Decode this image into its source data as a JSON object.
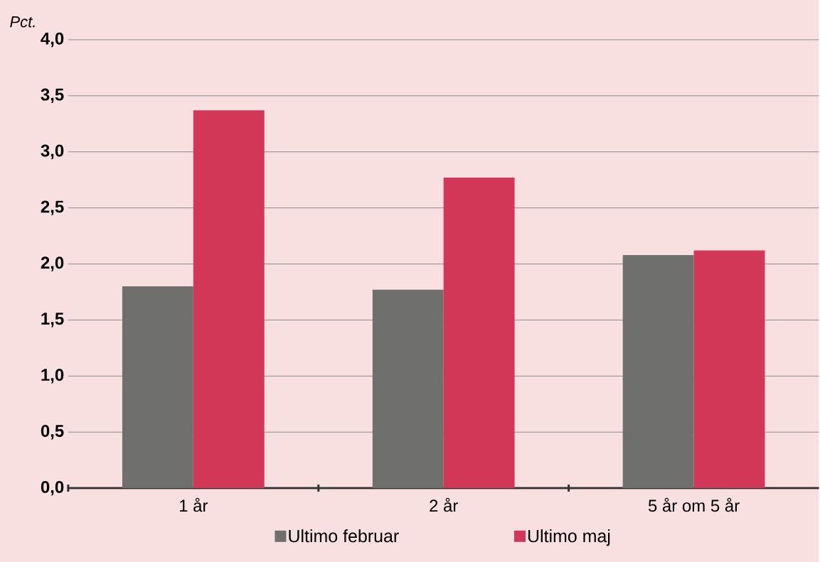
{
  "chart_data": {
    "type": "bar",
    "ylabel": "*Pct.*",
    "categories": [
      "1 år",
      "2 år",
      "5 år om 5 år"
    ],
    "series": [
      {
        "name": "Ultimo februar",
        "color": "#6f706d",
        "values": [
          1.8,
          1.77,
          2.08
        ]
      },
      {
        "name": "Ultimo maj",
        "color": "#d33757",
        "values": [
          3.37,
          2.77,
          2.12
        ]
      }
    ],
    "ylim": [
      0,
      4
    ],
    "yticks": [
      {
        "value": 0,
        "label": "0,0"
      },
      {
        "value": 0.5,
        "label": "0,5"
      },
      {
        "value": 1,
        "label": "1,0"
      },
      {
        "value": 1.5,
        "label": "1,5"
      },
      {
        "value": 2,
        "label": "2,0"
      },
      {
        "value": 2.5,
        "label": "2,5"
      },
      {
        "value": 3,
        "label": "3,0"
      },
      {
        "value": 3.5,
        "label": "3,5"
      },
      {
        "value": 4,
        "label": "4,0"
      }
    ],
    "grid": "y",
    "legend": "bottom"
  }
}
